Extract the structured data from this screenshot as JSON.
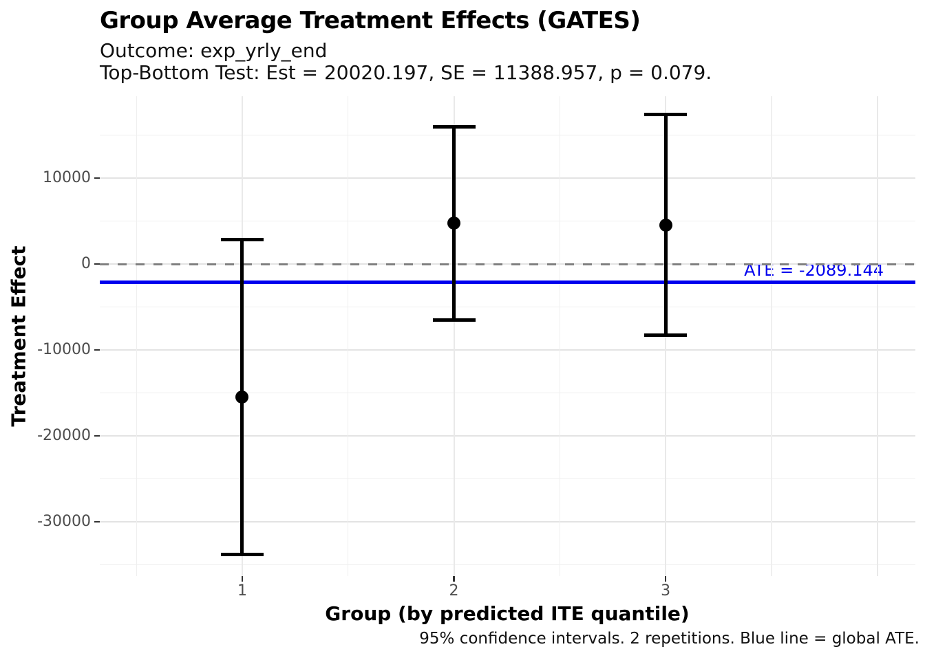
{
  "chart_data": {
    "type": "scatter",
    "variant": "point-errorbar",
    "title": "Group Average Treatment Effects (GATES)",
    "subtitle": [
      "Outcome: exp_yrly_end",
      "Top-Bottom Test: Est = 20020.197, SE = 11388.957, p = 0.079."
    ],
    "xlabel": "Group (by predicted ITE quantile)",
    "ylabel": "Treatment Effect",
    "caption": "95% confidence intervals. 2 repetitions. Blue line = global ATE.",
    "ci_level": "95%",
    "categories": [
      1,
      2,
      3
    ],
    "points": [
      {
        "group": 1,
        "estimate": -15450,
        "ci_low": -33800,
        "ci_high": 2850
      },
      {
        "group": 2,
        "estimate": 4750,
        "ci_low": -6500,
        "ci_high": 16000
      },
      {
        "group": 3,
        "estimate": 4550,
        "ci_low": -8250,
        "ci_high": 17400
      }
    ],
    "reference_lines": [
      {
        "name": "zero-line",
        "value": 0,
        "style": "dashed",
        "color": "#808080",
        "label": ""
      },
      {
        "name": "ate-line",
        "value": -2089.144,
        "style": "solid",
        "color": "#0000ee",
        "label": "ATE = -2089.144"
      }
    ],
    "y_ticks": [
      10000,
      0,
      -10000,
      -20000,
      -30000
    ],
    "y_minor_ticks": [
      15000,
      5000,
      -5000,
      -15000,
      -25000,
      -35000
    ],
    "x_ticks": [
      1,
      2,
      3
    ],
    "x_gridlines": [
      0.5,
      1,
      1.5,
      2,
      2.5,
      3,
      3.5,
      4
    ],
    "xlim": [
      0.327,
      4.18
    ],
    "ylim": [
      -36320,
      19520
    ],
    "grid": true,
    "legend": "none",
    "colors": {
      "point": "#000000",
      "errorbar": "#000000",
      "ate_line": "#0000ee",
      "zero_line": "#808080",
      "grid_major": "#e3e3e3",
      "grid_minor": "#efefef",
      "grid_vertical": "#e9e9e9",
      "tick_mark": "#333333",
      "tick_label": "#4d4d4d"
    }
  }
}
